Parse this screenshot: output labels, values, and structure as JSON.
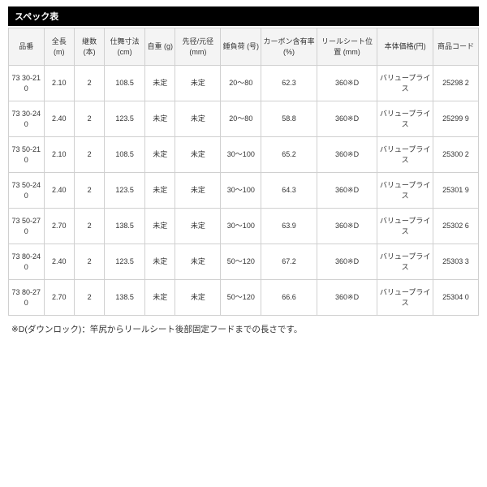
{
  "title": "スペック表",
  "columns": [
    "品番",
    "全長\n(m)",
    "継数\n(本)",
    "仕舞寸法\n(cm)",
    "自重\n(g)",
    "先径/元径\n(mm)",
    "錘負荷\n(号)",
    "カーボン含有率\n(%)",
    "リールシート位置\n(mm)",
    "本体価格(円)",
    "商品コード"
  ],
  "rows": [
    [
      "73 30-210",
      "2.10",
      "2",
      "108.5",
      "未定",
      "未定",
      "20～80",
      "62.3",
      "360※D",
      "バリュープライス",
      "25298 2"
    ],
    [
      "73 30-240",
      "2.40",
      "2",
      "123.5",
      "未定",
      "未定",
      "20～80",
      "58.8",
      "360※D",
      "バリュープライス",
      "25299 9"
    ],
    [
      "73 50-210",
      "2.10",
      "2",
      "108.5",
      "未定",
      "未定",
      "30～100",
      "65.2",
      "360※D",
      "バリュープライス",
      "25300 2"
    ],
    [
      "73 50-240",
      "2.40",
      "2",
      "123.5",
      "未定",
      "未定",
      "30～100",
      "64.3",
      "360※D",
      "バリュープライス",
      "25301 9"
    ],
    [
      "73 50-270",
      "2.70",
      "2",
      "138.5",
      "未定",
      "未定",
      "30～100",
      "63.9",
      "360※D",
      "バリュープライス",
      "25302 6"
    ],
    [
      "73 80-240",
      "2.40",
      "2",
      "123.5",
      "未定",
      "未定",
      "50～120",
      "67.2",
      "360※D",
      "バリュープライス",
      "25303 3"
    ],
    [
      "73 80-270",
      "2.70",
      "2",
      "138.5",
      "未定",
      "未定",
      "50～120",
      "66.6",
      "360※D",
      "バリュープライス",
      "25304 0"
    ]
  ],
  "footnote": "※D(ダウンロック)：竿尻からリールシート後部固定フードまでの長さです。"
}
